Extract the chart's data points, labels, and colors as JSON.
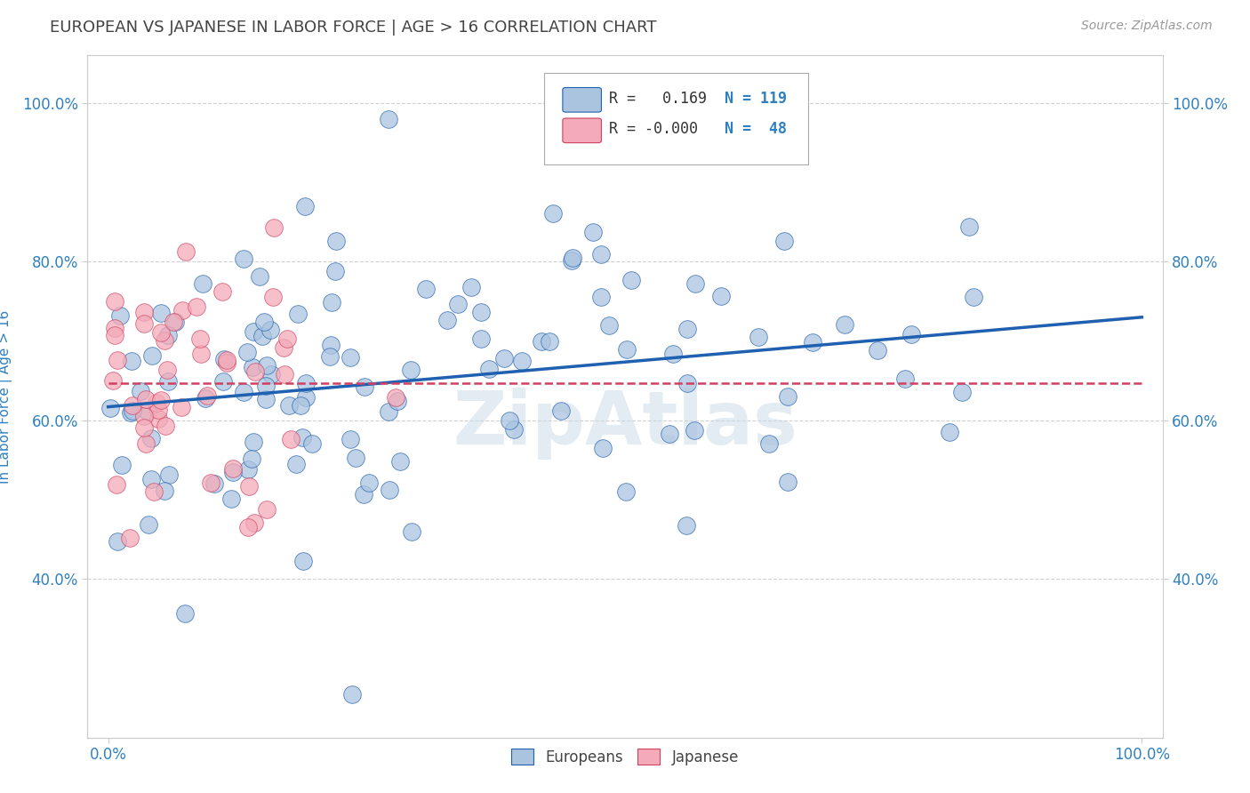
{
  "title": "EUROPEAN VS JAPANESE IN LABOR FORCE | AGE > 16 CORRELATION CHART",
  "source": "Source: ZipAtlas.com",
  "ylabel": "In Labor Force | Age > 16",
  "xlim": [
    -0.02,
    1.02
  ],
  "ylim": [
    0.2,
    1.06
  ],
  "xticks": [
    0.0,
    1.0
  ],
  "yticks": [
    0.4,
    0.6,
    0.8,
    1.0
  ],
  "xtick_labels_bottom": [
    "0.0%",
    "100.0%"
  ],
  "ytick_labels": [
    "40.0%",
    "60.0%",
    "80.0%",
    "100.0%"
  ],
  "legend_r_european": "R =   0.169",
  "legend_n_european": "N = 119",
  "legend_r_japanese": "R = -0.000",
  "legend_n_japanese": "N = 48",
  "european_color": "#aac4e0",
  "japanese_color": "#f4aab8",
  "trendline_european_color": "#2060b0",
  "trendline_japanese_color": "#d04060",
  "watermark": "ZipAtlas",
  "background_color": "#ffffff",
  "grid_color": "#cccccc",
  "title_color": "#444444",
  "tick_label_color": "#3080c0",
  "trendline_eur_x0": 0.0,
  "trendline_eur_x1": 1.0,
  "trendline_eur_y0": 0.617,
  "trendline_eur_y1": 0.73,
  "trendline_jap_x0": 0.0,
  "trendline_jap_x1": 1.0,
  "trendline_jap_y0": 0.647,
  "trendline_jap_y1": 0.647
}
